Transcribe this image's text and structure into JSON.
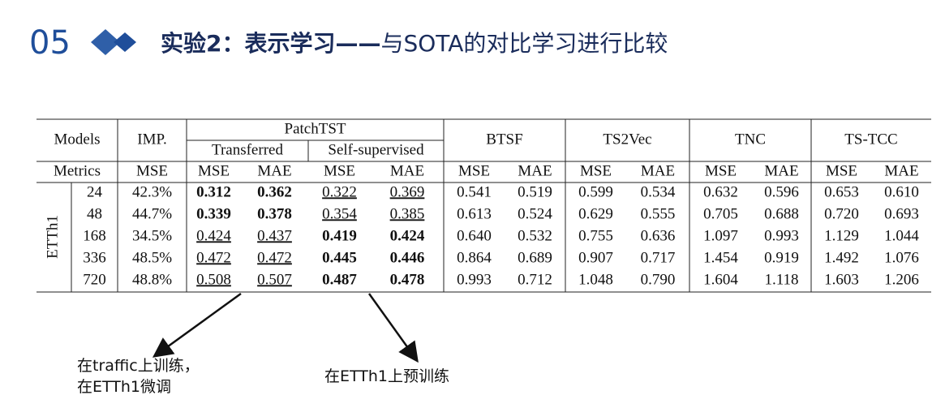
{
  "header": {
    "number": "05",
    "title_bold": "实验2：表示学习——",
    "title": "与SOTA的对比学习进行比较"
  },
  "table": {
    "models_label": "Models",
    "imp_label": "IMP.",
    "metrics_label": "Metrics",
    "patchtst": {
      "name": "PatchTST",
      "subgroups": [
        "Transferred",
        "Self-supervised"
      ]
    },
    "baselines": [
      "BTSF",
      "TS2Vec",
      "TNC",
      "TS-TCC"
    ],
    "metric_headers": [
      "MSE",
      "MSE",
      "MAE",
      "MSE",
      "MAE",
      "MSE",
      "MAE",
      "MSE",
      "MAE",
      "MSE",
      "MAE",
      "MSE",
      "MAE"
    ],
    "dataset": "ETTh1",
    "rows": [
      {
        "horizon": "24",
        "cells": [
          "42.3%",
          "0.312",
          "0.362",
          "0.322",
          "0.369",
          "0.541",
          "0.519",
          "0.599",
          "0.534",
          "0.632",
          "0.596",
          "0.653",
          "0.610"
        ],
        "bold": [
          1,
          2
        ],
        "underline": [
          3,
          4
        ]
      },
      {
        "horizon": "48",
        "cells": [
          "44.7%",
          "0.339",
          "0.378",
          "0.354",
          "0.385",
          "0.613",
          "0.524",
          "0.629",
          "0.555",
          "0.705",
          "0.688",
          "0.720",
          "0.693"
        ],
        "bold": [
          1,
          2
        ],
        "underline": [
          3,
          4
        ]
      },
      {
        "horizon": "168",
        "cells": [
          "34.5%",
          "0.424",
          "0.437",
          "0.419",
          "0.424",
          "0.640",
          "0.532",
          "0.755",
          "0.636",
          "1.097",
          "0.993",
          "1.129",
          "1.044"
        ],
        "bold": [
          3,
          4
        ],
        "underline": [
          1,
          2
        ]
      },
      {
        "horizon": "336",
        "cells": [
          "48.5%",
          "0.472",
          "0.472",
          "0.445",
          "0.446",
          "0.864",
          "0.689",
          "0.907",
          "0.717",
          "1.454",
          "0.919",
          "1.492",
          "1.076"
        ],
        "bold": [
          3,
          4
        ],
        "underline": [
          1,
          2
        ]
      },
      {
        "horizon": "720",
        "cells": [
          "48.8%",
          "0.508",
          "0.507",
          "0.487",
          "0.478",
          "0.993",
          "0.712",
          "1.048",
          "0.790",
          "1.604",
          "1.118",
          "1.603",
          "1.206"
        ],
        "bold": [
          3,
          4
        ],
        "underline": [
          1,
          2
        ]
      }
    ]
  },
  "annotations": [
    {
      "lines": [
        "在traffic上训练，",
        "在ETTh1微调"
      ]
    },
    {
      "lines": [
        "在ETTh1上预训练"
      ]
    }
  ]
}
